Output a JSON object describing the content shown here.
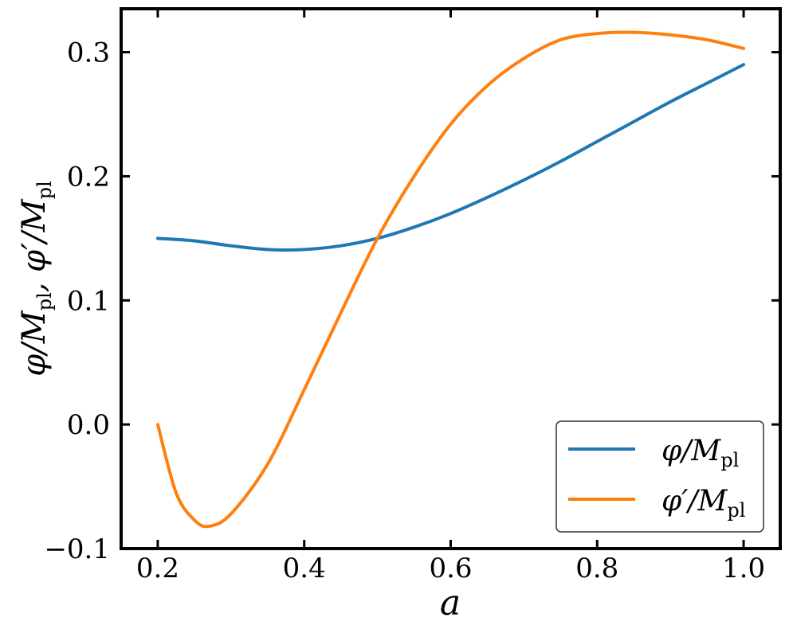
{
  "chart_data": {
    "type": "line",
    "xlabel": "a",
    "ylabel": "φ/M_pl, φ′/M_pl",
    "xlim": [
      0.15,
      1.05
    ],
    "ylim": [
      -0.1,
      0.335
    ],
    "xticks": [
      0.2,
      0.4,
      0.6,
      0.8,
      1.0
    ],
    "xtick_labels": [
      "0.2",
      "0.4",
      "0.6",
      "0.8",
      "1.0"
    ],
    "yticks": [
      -0.1,
      0.0,
      0.1,
      0.2,
      0.3
    ],
    "ytick_labels": [
      "−0.1",
      "0.0",
      "0.1",
      "0.2",
      "0.3"
    ],
    "grid": false,
    "legend_position": "bottom-right",
    "series": [
      {
        "name": "φ/M_pl",
        "color": "#1f77b4",
        "x": [
          0.2,
          0.25,
          0.3,
          0.35,
          0.4,
          0.45,
          0.5,
          0.55,
          0.6,
          0.65,
          0.7,
          0.75,
          0.8,
          0.85,
          0.9,
          0.95,
          1.0
        ],
        "y": [
          0.15,
          0.148,
          0.144,
          0.141,
          0.141,
          0.144,
          0.15,
          0.159,
          0.17,
          0.183,
          0.197,
          0.212,
          0.228,
          0.244,
          0.26,
          0.275,
          0.29
        ]
      },
      {
        "name": "φ′/M_pl",
        "color": "#ff7f0e",
        "x": [
          0.2,
          0.225,
          0.25,
          0.27,
          0.3,
          0.35,
          0.4,
          0.45,
          0.5,
          0.55,
          0.6,
          0.65,
          0.7,
          0.75,
          0.8,
          0.85,
          0.9,
          0.95,
          1.0
        ],
        "y": [
          0.0,
          -0.055,
          -0.077,
          -0.082,
          -0.072,
          -0.032,
          0.028,
          0.09,
          0.15,
          0.2,
          0.242,
          0.273,
          0.295,
          0.31,
          0.315,
          0.316,
          0.314,
          0.31,
          0.303
        ]
      }
    ]
  }
}
